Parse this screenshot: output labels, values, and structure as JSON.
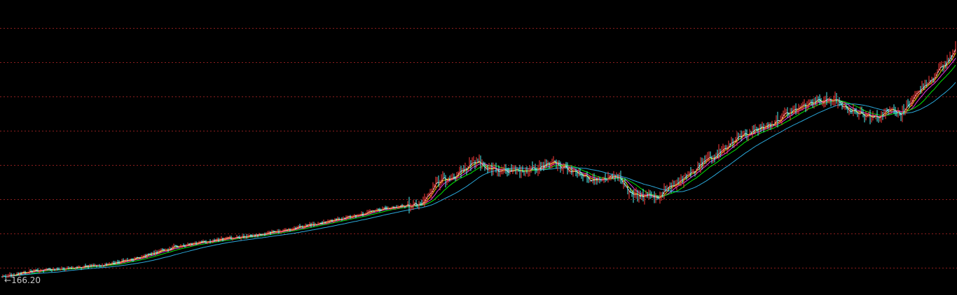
{
  "min_marker": {
    "arrow": "←",
    "value": "166.20"
  },
  "colors": {
    "background": "#000000",
    "grid": "#8b1e1e",
    "candle_up": "#ff3b3b",
    "candle_down": "#4ef0f0",
    "ma_fast": "#ffffff",
    "ma_mid": "#ffff00",
    "ma_slow": "#ff40ff",
    "ma_slower": "#00ff00",
    "ma_long": "#2fb8f0"
  },
  "chart_data": {
    "type": "line",
    "title": "",
    "xlabel": "",
    "ylabel": "",
    "grid": true,
    "y_scale": "log",
    "min_label": "166.20",
    "x": [
      0,
      50,
      100,
      150,
      200,
      250,
      300,
      350,
      400,
      450,
      500,
      550,
      600,
      625,
      650,
      680,
      700,
      730,
      760,
      790,
      820,
      850,
      880,
      900,
      940,
      960,
      980,
      1000,
      1020,
      1040,
      1060,
      1080,
      1100,
      1130,
      1160,
      1190,
      1210,
      1230,
      1250,
      1270,
      1285,
      1300,
      1320,
      1340,
      1355,
      1366
    ],
    "series": [
      {
        "values": [
          166.2,
          175,
          178,
          183,
          195,
          212,
          222,
          230,
          240,
          255,
          270,
          288,
          300,
          355,
          380,
          420,
          395,
          385,
          392,
          415,
          385,
          360,
          380,
          320,
          318,
          350,
          370,
          410,
          440,
          480,
          520,
          545,
          570,
          630,
          680,
          700,
          640,
          620,
          600,
          640,
          610,
          690,
          780,
          870,
          960,
          1100
        ]
      }
    ]
  }
}
